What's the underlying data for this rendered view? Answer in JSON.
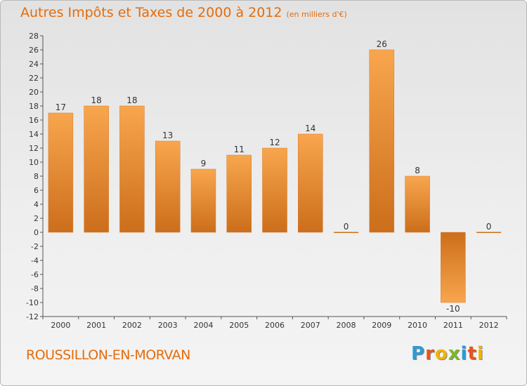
{
  "title": "Autres Impôts et Taxes de 2000 à 2012",
  "subtitle": "(en milliers d'€)",
  "place": "ROUSSILLON-EN-MORVAN",
  "logo": {
    "letters": [
      "P",
      "r",
      "o",
      "x",
      "i",
      "t",
      "i"
    ],
    "colors": [
      "#2e9ad6",
      "#e8541c",
      "#f2b400",
      "#7cb82f",
      "#2e9ad6",
      "#e8541c",
      "#f2b400"
    ]
  },
  "colors": {
    "bar_light": "#f8a64e",
    "bar_dark": "#cc6e1b",
    "accent": "#e46c0a"
  },
  "chart_data": {
    "type": "bar",
    "categories": [
      "2000",
      "2001",
      "2002",
      "2003",
      "2004",
      "2005",
      "2006",
      "2007",
      "2008",
      "2009",
      "2010",
      "2011",
      "2012"
    ],
    "values": [
      17,
      18,
      18,
      13,
      9,
      11,
      12,
      14,
      0,
      26,
      8,
      -10,
      0
    ],
    "ylim": [
      -12,
      28
    ],
    "yticks": [
      -12,
      -10,
      -8,
      -6,
      -4,
      -2,
      0,
      2,
      4,
      6,
      8,
      10,
      12,
      14,
      16,
      18,
      20,
      22,
      24,
      26,
      28
    ],
    "grid": false,
    "data_labels": true
  }
}
